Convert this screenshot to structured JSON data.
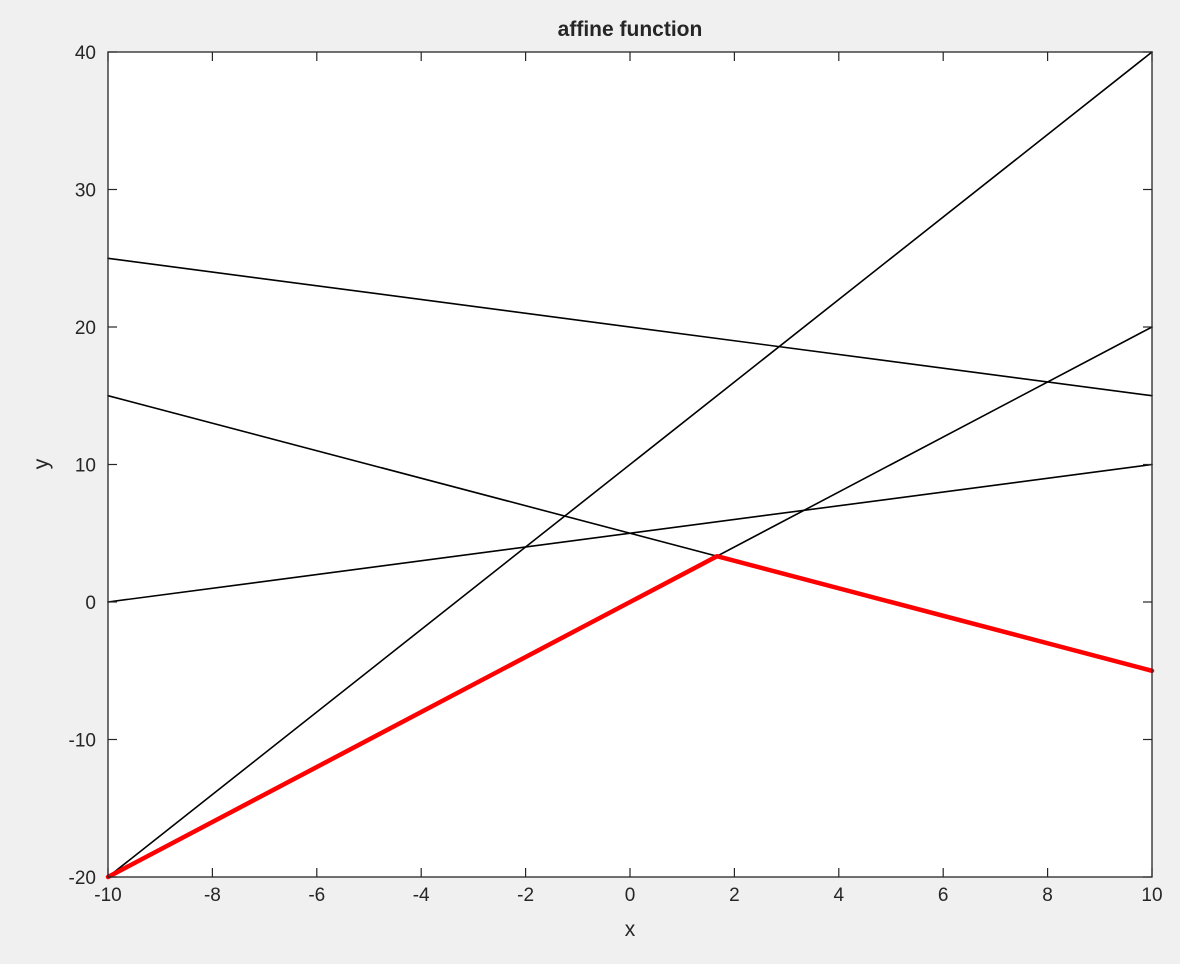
{
  "chart_data": {
    "type": "line",
    "title": "affine function",
    "xlabel": "x",
    "ylabel": "y",
    "xlim": [
      -10,
      10
    ],
    "ylim": [
      -20,
      40
    ],
    "xticks": [
      -10,
      -8,
      -6,
      -4,
      -2,
      0,
      2,
      4,
      6,
      8,
      10
    ],
    "yticks": [
      -20,
      -10,
      0,
      10,
      20,
      30,
      40
    ],
    "xtick_labels": [
      "-10",
      "-8",
      "-6",
      "-4",
      "-2",
      "0",
      "2",
      "4",
      "6",
      "8",
      "10"
    ],
    "ytick_labels": [
      "-20",
      "-10",
      "0",
      "10",
      "20",
      "30",
      "40"
    ],
    "grid": false,
    "series": [
      {
        "color": "#000000",
        "x": [
          -10,
          10
        ],
        "y": [
          -20,
          40
        ]
      },
      {
        "color": "#000000",
        "x": [
          -10,
          10
        ],
        "y": [
          25,
          15
        ]
      },
      {
        "color": "#000000",
        "x": [
          -10,
          10
        ],
        "y": [
          15,
          -5
        ]
      },
      {
        "color": "#000000",
        "x": [
          -10,
          10
        ],
        "y": [
          0,
          10
        ]
      },
      {
        "color": "#000000",
        "x": [
          -10,
          10
        ],
        "y": [
          -20,
          20
        ]
      },
      {
        "color": "#ff0000",
        "emphasis": true,
        "x": [
          -10,
          1.667,
          10
        ],
        "y": [
          -20,
          3.333,
          -5
        ]
      }
    ]
  }
}
